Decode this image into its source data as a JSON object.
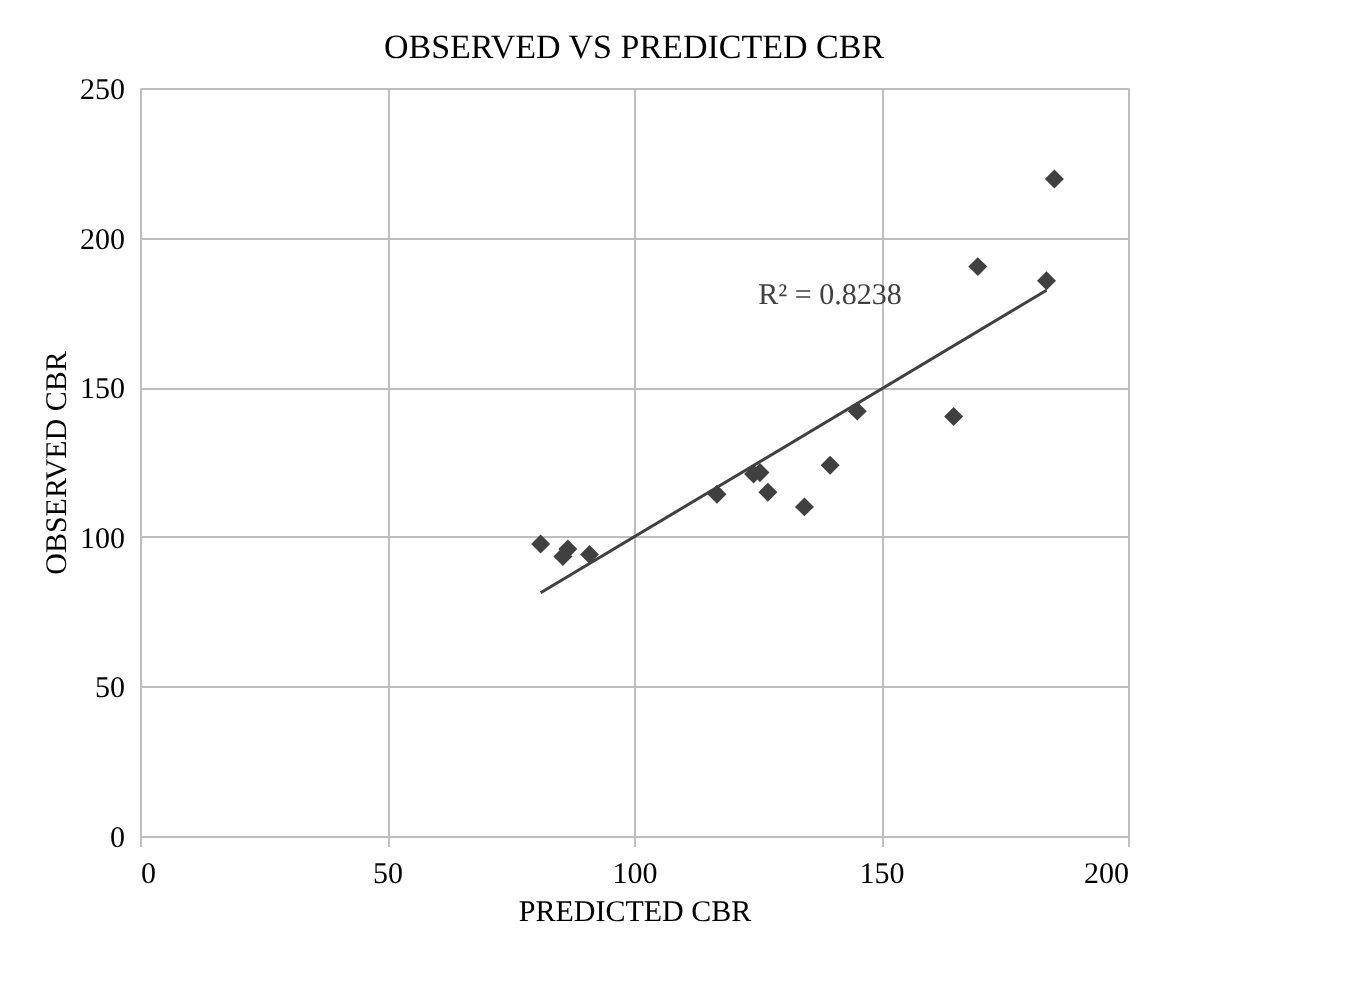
{
  "chart_data": {
    "type": "scatter",
    "title": "OBSERVED VS PREDICTED CBR",
    "xlabel": "PREDICTED CBR",
    "ylabel": "OBSERVED CBR",
    "xlim": [
      0,
      200
    ],
    "xticks": [
      0,
      50,
      100,
      150,
      200
    ],
    "ylim": [
      0,
      250
    ],
    "yticks": [
      0,
      50,
      100,
      150,
      200,
      250
    ],
    "grid": true,
    "marker": "diamond",
    "series": [
      {
        "color": "#404040",
        "x": [
          81.1,
          85.6,
          86.6,
          91.0,
          116.8,
          124.2,
          125.5,
          127.1,
          134.5,
          139.7,
          145.2,
          164.7,
          169.6,
          183.5,
          185.1
        ],
        "values": [
          97.6,
          93.4,
          95.9,
          94.1,
          114.2,
          121,
          121.5,
          114.9,
          110,
          123.9,
          142,
          140.2,
          190.3,
          185.6,
          219.6
        ]
      },
      {
        "type": "line",
        "color": "#404040",
        "line_style": "solid",
        "marker": "none",
        "x": [
          81.1,
          183.5
        ],
        "values": [
          81.3,
          182.4
        ]
      }
    ],
    "annotations": [
      "R² = 0.8238"
    ]
  }
}
